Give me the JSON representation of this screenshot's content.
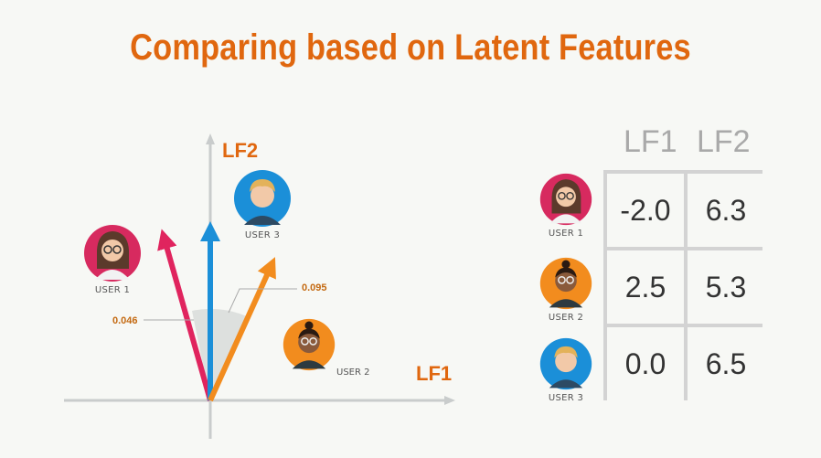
{
  "title": "Comparing based on Latent Features",
  "axes": {
    "x_label": "LF1",
    "y_label": "LF2"
  },
  "angle_labels": [
    "0.046",
    "0.095"
  ],
  "users": [
    {
      "caption": "USER 1",
      "avatar": "woman-glasses-avatar",
      "lf1": "-2.0",
      "lf2": "6.3",
      "vector_color": "#e0245e"
    },
    {
      "caption": "USER 2",
      "avatar": "woman-glasses-dark-avatar",
      "lf1": "2.5",
      "lf2": "5.3",
      "vector_color": "#f28c1e"
    },
    {
      "caption": "USER 3",
      "avatar": "man-blond-avatar",
      "lf1": "0.0",
      "lf2": "6.5",
      "vector_color": "#1b8fd8"
    }
  ],
  "table": {
    "headers": [
      "LF1",
      "LF2"
    ],
    "rows": [
      {
        "user": "USER 1",
        "values": [
          "-2.0",
          "6.3"
        ]
      },
      {
        "user": "USER 2",
        "values": [
          "2.5",
          "5.3"
        ]
      },
      {
        "user": "USER 3",
        "values": [
          "0.0",
          "6.5"
        ]
      }
    ]
  },
  "colors": {
    "title": "#e0670f",
    "axis_label": "#e0670f",
    "angle_label": "#c46a12",
    "axis": "#c9cccc",
    "grid": "#d3d3d3"
  }
}
